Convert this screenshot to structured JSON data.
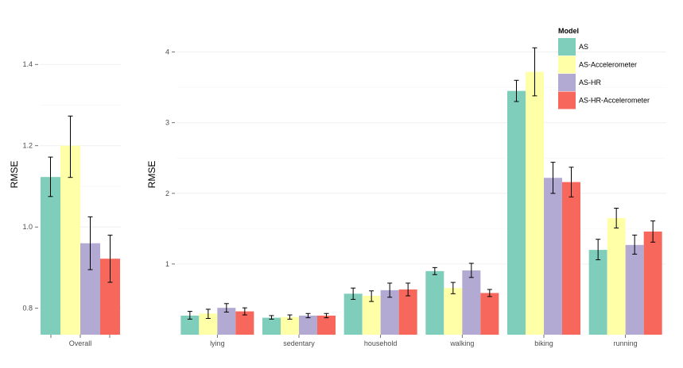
{
  "chart_data": [
    {
      "type": "bar",
      "ylabel": "RMSE",
      "ylim": [
        0.735,
        1.5
      ],
      "yticks": [
        0.8,
        1.0,
        1.2,
        1.4
      ],
      "ytick_labels": [
        "0.8",
        "1.0",
        "1.2",
        "1.4"
      ],
      "categories": [
        "Overall"
      ],
      "series": [
        {
          "name": "AS",
          "color": "#7fcdbb",
          "values": [
            1.123
          ],
          "err_low": [
            1.075
          ],
          "err_high": [
            1.172
          ]
        },
        {
          "name": "AS-Accelerometer",
          "color": "#ffffa8",
          "values": [
            1.2
          ],
          "err_low": [
            1.122
          ],
          "err_high": [
            1.273
          ]
        },
        {
          "name": "AS-HR",
          "color": "#b3aad4",
          "values": [
            0.96
          ],
          "err_low": [
            0.895
          ],
          "err_high": [
            1.025
          ]
        },
        {
          "name": "AS-HR-Accelerometer",
          "color": "#f8675c",
          "values": [
            0.922
          ],
          "err_low": [
            0.864
          ],
          "err_high": [
            0.98
          ]
        }
      ],
      "grid": true
    },
    {
      "type": "bar",
      "ylabel": "RMSE",
      "ylim": [
        0.0,
        4.4
      ],
      "yticks": [
        1,
        2,
        3,
        4
      ],
      "ytick_labels": [
        "1",
        "2",
        "3",
        "4"
      ],
      "categories": [
        "lying",
        "sedentary",
        "household",
        "walking",
        "biking",
        "running"
      ],
      "series": [
        {
          "name": "AS",
          "color": "#7fcdbb",
          "values": [
            0.27,
            0.24,
            0.58,
            0.9,
            3.45,
            1.2
          ],
          "err_low": [
            0.22,
            0.22,
            0.5,
            0.85,
            3.3,
            1.06
          ],
          "err_high": [
            0.33,
            0.27,
            0.66,
            0.95,
            3.6,
            1.35
          ]
        },
        {
          "name": "AS-Accelerometer",
          "color": "#ffffa8",
          "values": [
            0.3,
            0.25,
            0.55,
            0.66,
            3.72,
            1.65
          ],
          "err_low": [
            0.23,
            0.22,
            0.47,
            0.58,
            3.38,
            1.51
          ],
          "err_high": [
            0.36,
            0.28,
            0.62,
            0.74,
            4.06,
            1.79
          ]
        },
        {
          "name": "AS-HR",
          "color": "#b3aad4",
          "values": [
            0.38,
            0.27,
            0.63,
            0.91,
            2.22,
            1.27
          ],
          "err_low": [
            0.32,
            0.24,
            0.53,
            0.81,
            2.0,
            1.14
          ],
          "err_high": [
            0.44,
            0.3,
            0.73,
            1.01,
            2.44,
            1.41
          ]
        },
        {
          "name": "AS-HR-Accelerometer",
          "color": "#f8675c",
          "values": [
            0.33,
            0.27,
            0.64,
            0.59,
            2.16,
            1.46
          ],
          "err_low": [
            0.28,
            0.24,
            0.55,
            0.54,
            1.95,
            1.31
          ],
          "err_high": [
            0.38,
            0.3,
            0.73,
            0.64,
            2.37,
            1.61
          ]
        }
      ],
      "grid": true,
      "legend": {
        "title": "Model",
        "placement": "top-right",
        "entries": [
          "AS",
          "AS-Accelerometer",
          "AS-HR",
          "AS-HR-Accelerometer"
        ]
      }
    }
  ]
}
